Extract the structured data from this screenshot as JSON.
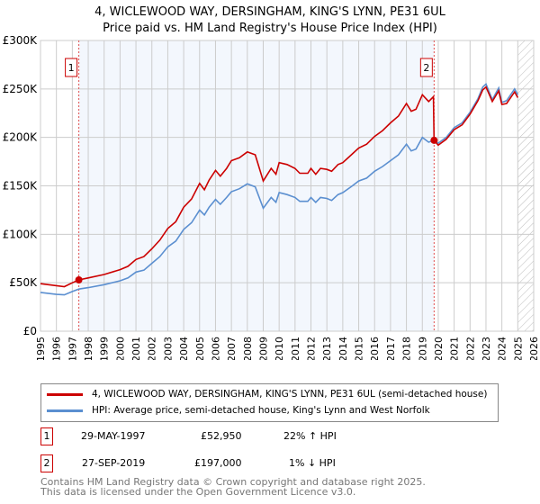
{
  "chart_data": {
    "type": "line",
    "title": "4, WICLEWOOD WAY, DERSINGHAM, KING'S LYNN, PE31 6UL",
    "subtitle": "Price paid vs. HM Land Registry's House Price Index (HPI)",
    "xlim": [
      1995,
      2026
    ],
    "ylim": [
      0,
      300000
    ],
    "xticks": [
      "1995",
      "1996",
      "1997",
      "1998",
      "1999",
      "2000",
      "2001",
      "2002",
      "2003",
      "2004",
      "2005",
      "2006",
      "2007",
      "2008",
      "2009",
      "2010",
      "2011",
      "2012",
      "2013",
      "2014",
      "2015",
      "2016",
      "2017",
      "2018",
      "2019",
      "2020",
      "2021",
      "2022",
      "2023",
      "2024",
      "2025",
      "2026"
    ],
    "yticks": [
      {
        "v": 0,
        "label": "£0"
      },
      {
        "v": 50000,
        "label": "£50K"
      },
      {
        "v": 100000,
        "label": "£100K"
      },
      {
        "v": 150000,
        "label": "£150K"
      },
      {
        "v": 200000,
        "label": "£200K"
      },
      {
        "v": 250000,
        "label": "£250K"
      },
      {
        "v": 300000,
        "label": "£300K"
      }
    ],
    "grid": true,
    "shaded_period": [
      1997.41,
      2019.74
    ],
    "forecast_hatch_from": 2025.0,
    "series": [
      {
        "name": "4, WICLEWOOD WAY, DERSINGHAM, KING'S LYNN, PE31 6UL (semi-detached house)",
        "color": "#cc0000",
        "x": [
          1995,
          1996,
          1996.5,
          1997,
          1997.41,
          1998,
          1999,
          2000,
          2000.5,
          2001,
          2001.5,
          2002,
          2002.5,
          2003,
          2003.5,
          2004,
          2004.5,
          2005,
          2005.3,
          2005.6,
          2006,
          2006.3,
          2006.7,
          2007,
          2007.5,
          2008,
          2008.5,
          2009,
          2009.5,
          2009.8,
          2010,
          2010.5,
          2011,
          2011.3,
          2011.8,
          2012,
          2012.3,
          2012.6,
          2013,
          2013.3,
          2013.7,
          2014,
          2014.6,
          2015,
          2015.5,
          2016,
          2016.5,
          2017,
          2017.5,
          2018,
          2018.3,
          2018.6,
          2019,
          2019.4,
          2019.7,
          2019.74,
          2020,
          2020.5,
          2021,
          2021.5,
          2022,
          2022.5,
          2022.8,
          2023,
          2023.4,
          2023.8,
          2024,
          2024.3,
          2024.8,
          2025
        ],
        "y": [
          49,
          47,
          46,
          50,
          52.95,
          55,
          58.5,
          63.5,
          67,
          74,
          77,
          85,
          94,
          106,
          113,
          128,
          136.5,
          152.5,
          146,
          156,
          166,
          160,
          168,
          176,
          179,
          185,
          182,
          155,
          168,
          162,
          174,
          172,
          168,
          163,
          163,
          168,
          162,
          168,
          167,
          165,
          172,
          174,
          183,
          189,
          193,
          201,
          207,
          215,
          222,
          235,
          227,
          229,
          244,
          237,
          242,
          197,
          192,
          198,
          208,
          213,
          224,
          238,
          249,
          252,
          237,
          248,
          234,
          235,
          247,
          241
        ]
      },
      {
        "name": "HPI: Average price, semi-detached house, King's Lynn and West Norfolk",
        "color": "#5b8fd0",
        "x": [
          1995,
          1996,
          1996.5,
          1997,
          1997.41,
          1998,
          1999,
          2000,
          2000.5,
          2001,
          2001.5,
          2002,
          2002.5,
          2003,
          2003.5,
          2004,
          2004.5,
          2005,
          2005.3,
          2005.6,
          2006,
          2006.3,
          2006.7,
          2007,
          2007.5,
          2008,
          2008.5,
          2009,
          2009.5,
          2009.8,
          2010,
          2010.5,
          2011,
          2011.3,
          2011.8,
          2012,
          2012.3,
          2012.6,
          2013,
          2013.3,
          2013.7,
          2014,
          2014.6,
          2015,
          2015.5,
          2016,
          2016.5,
          2017,
          2017.5,
          2018,
          2018.3,
          2018.6,
          2019,
          2019.4,
          2019.7,
          2020,
          2020.5,
          2021,
          2021.5,
          2022,
          2022.5,
          2022.8,
          2023,
          2023.4,
          2023.8,
          2024,
          2024.3,
          2024.8,
          2025
        ],
        "y": [
          40,
          38,
          37.5,
          41,
          43.5,
          45,
          48,
          52,
          55,
          61,
          63,
          70,
          77,
          87,
          93,
          105,
          112,
          125,
          120,
          128,
          136,
          131,
          138,
          144,
          147,
          152,
          149,
          127,
          138,
          133,
          143,
          141,
          138,
          134,
          134,
          138,
          133,
          138,
          137,
          135,
          141,
          143,
          150,
          155,
          158,
          165,
          170,
          176,
          182,
          193,
          186,
          188,
          200,
          195,
          197,
          194,
          200,
          210,
          215,
          226,
          240,
          252,
          255,
          239,
          251,
          236,
          238,
          250,
          244
        ]
      }
    ],
    "y_units": "thousands GBP",
    "annotations": [
      {
        "label": "1",
        "x": 1997.41,
        "y": 52.95
      },
      {
        "label": "2",
        "x": 2019.74,
        "y": 197
      }
    ]
  },
  "legend": [
    {
      "label": "4, WICLEWOOD WAY, DERSINGHAM, KING'S LYNN, PE31 6UL (semi-detached house)",
      "color": "#cc0000"
    },
    {
      "label": "HPI: Average price, semi-detached house, King's Lynn and West Norfolk",
      "color": "#5b8fd0"
    }
  ],
  "transactions": [
    {
      "num": "1",
      "date": "29-MAY-1997",
      "price": "£52,950",
      "hpi": "22% ↑ HPI"
    },
    {
      "num": "2",
      "date": "27-SEP-2019",
      "price": "£197,000",
      "hpi": "1% ↓ HPI"
    }
  ],
  "footer": [
    "Contains HM Land Registry data © Crown copyright and database right 2025.",
    "This data is licensed under the Open Government Licence v3.0."
  ]
}
